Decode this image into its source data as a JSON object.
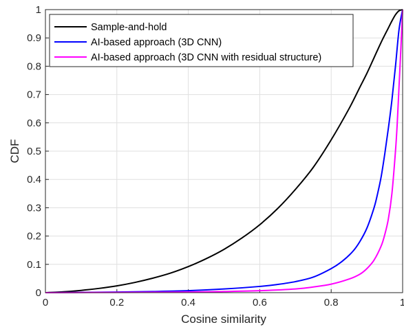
{
  "chart_data": {
    "type": "line",
    "title": "",
    "xlabel": "Cosine similarity",
    "ylabel": "CDF",
    "xlim": [
      0,
      1
    ],
    "ylim": [
      0,
      1
    ],
    "x_ticks": [
      "0",
      "0.2",
      "0.4",
      "0.6",
      "0.8",
      "1"
    ],
    "y_ticks": [
      "0",
      "0.1",
      "0.2",
      "0.3",
      "0.4",
      "0.5",
      "0.6",
      "0.7",
      "0.8",
      "0.9",
      "1"
    ],
    "grid": true,
    "legend_position": "top-left",
    "series": [
      {
        "name": "Sample-and-hold",
        "color": "#000000",
        "x": [
          0.0,
          0.05,
          0.1,
          0.15,
          0.2,
          0.25,
          0.3,
          0.35,
          0.4,
          0.45,
          0.5,
          0.55,
          0.6,
          0.65,
          0.7,
          0.75,
          0.8,
          0.85,
          0.88,
          0.9,
          0.92,
          0.94,
          0.96,
          0.97,
          0.98,
          0.99,
          1.0
        ],
        "y": [
          0.0,
          0.003,
          0.008,
          0.015,
          0.024,
          0.036,
          0.051,
          0.069,
          0.092,
          0.12,
          0.153,
          0.193,
          0.24,
          0.297,
          0.365,
          0.443,
          0.54,
          0.65,
          0.725,
          0.775,
          0.83,
          0.885,
          0.935,
          0.96,
          0.982,
          0.996,
          1.0
        ]
      },
      {
        "name": "AI-based approach (3D CNN)",
        "color": "#0000ff",
        "x": [
          0.0,
          0.1,
          0.2,
          0.3,
          0.4,
          0.5,
          0.6,
          0.65,
          0.7,
          0.75,
          0.8,
          0.83,
          0.86,
          0.88,
          0.9,
          0.92,
          0.93,
          0.94,
          0.95,
          0.96,
          0.97,
          0.98,
          0.99,
          1.0
        ],
        "y": [
          0.0,
          0.001,
          0.002,
          0.004,
          0.007,
          0.013,
          0.022,
          0.029,
          0.039,
          0.055,
          0.085,
          0.11,
          0.145,
          0.18,
          0.228,
          0.3,
          0.35,
          0.41,
          0.49,
          0.58,
          0.68,
          0.8,
          0.93,
          1.0
        ]
      },
      {
        "name": "AI-based approach (3D CNN with residual structure)",
        "color": "#ff00ff",
        "x": [
          0.0,
          0.2,
          0.4,
          0.5,
          0.6,
          0.7,
          0.75,
          0.8,
          0.85,
          0.88,
          0.9,
          0.92,
          0.94,
          0.95,
          0.96,
          0.97,
          0.98,
          0.985,
          0.99,
          0.995,
          1.0
        ],
        "y": [
          0.0,
          0.001,
          0.002,
          0.004,
          0.007,
          0.013,
          0.02,
          0.03,
          0.048,
          0.065,
          0.085,
          0.115,
          0.165,
          0.205,
          0.26,
          0.35,
          0.5,
          0.6,
          0.73,
          0.86,
          1.0
        ]
      }
    ]
  }
}
